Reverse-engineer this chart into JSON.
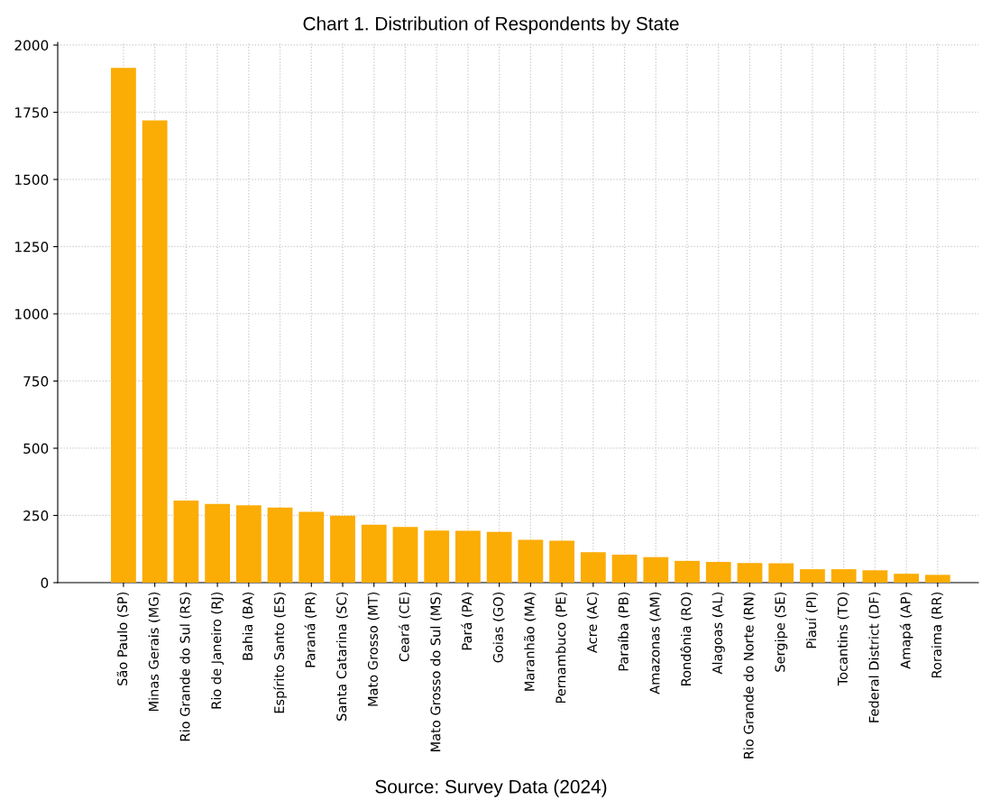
{
  "chart_data": {
    "type": "bar",
    "title": "Chart 1. Distribution of Respondents by State",
    "categories": [
      "São Paulo (SP)",
      "Minas Gerais (MG)",
      "Rio Grande do Sul (RS)",
      "Rio de Janeiro (RJ)",
      "Bahia (BA)",
      "Espírito Santo (ES)",
      "Paraná (PR)",
      "Santa Catarina (SC)",
      "Mato Grosso (MT)",
      "Ceará (CE)",
      "Mato Grosso do Sul (MS)",
      "Pará (PA)",
      "Goias (GO)",
      "Maranhão (MA)",
      "Pernambuco (PE)",
      "Acre (AC)",
      "Paraíba (PB)",
      "Amazonas (AM)",
      "Rondônia (RO)",
      "Alagoas (AL)",
      "Rio Grande do Norte (RN)",
      "Sergipe (SE)",
      "Piauí (PI)",
      "Tocantins (TO)",
      "Federal District (DF)",
      "Amapá (AP)",
      "Roraima (RR)"
    ],
    "values": [
      1915,
      1720,
      305,
      293,
      288,
      279,
      263,
      249,
      216,
      207,
      194,
      193,
      189,
      159,
      156,
      113,
      104,
      95,
      81,
      77,
      73,
      72,
      50,
      50,
      46,
      33,
      29
    ],
    "color": "#fbac05",
    "ylim": [
      0,
      2010
    ],
    "yticks": [
      0,
      250,
      500,
      750,
      1000,
      1250,
      1500,
      1750,
      2000
    ],
    "grid": true,
    "annotations": [
      "Source: Survey Data (2024)"
    ]
  }
}
